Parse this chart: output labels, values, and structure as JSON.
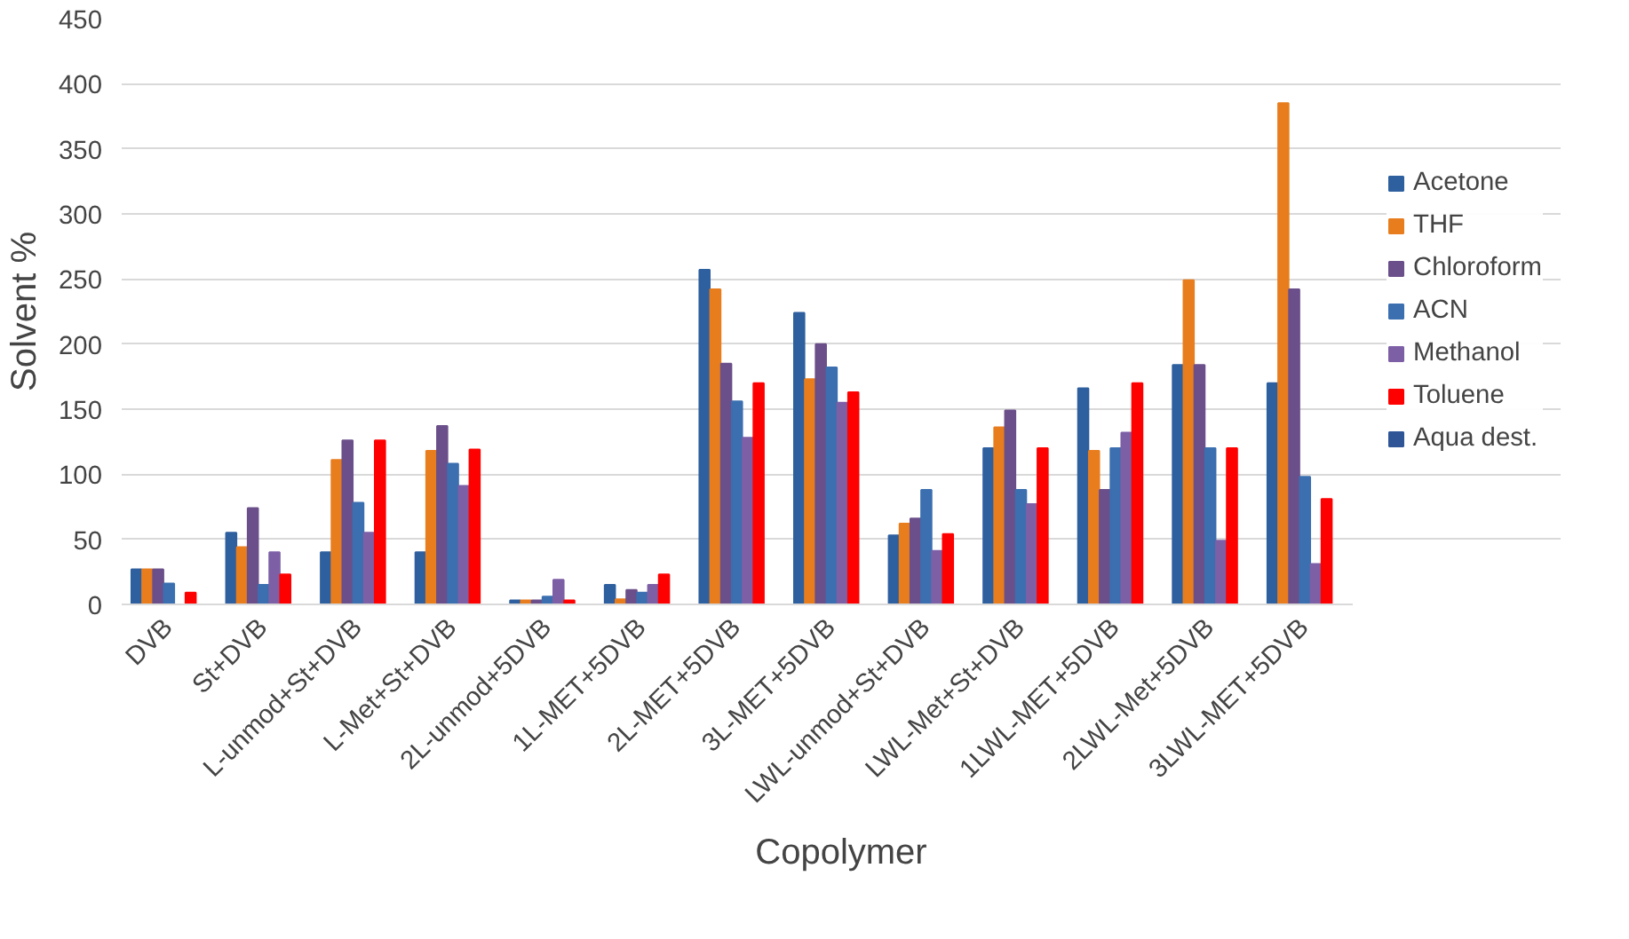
{
  "chart_data": {
    "type": "bar",
    "xlabel": "Copolymer",
    "ylabel": "Solvent %",
    "categories": [
      "DVB",
      "St+DVB",
      "L-unmod+St+DVB",
      "L-Met+St+DVB",
      "2L-unmod+5DVB",
      "1L-MET+5DVB",
      "2L-MET+5DVB",
      "3L-MET+5DVB",
      "LWL-unmod+St+DVB",
      "LWL-Met+St+DVB",
      "1LWL-MET+5DVB",
      "2LWL-Met+5DVB",
      "3LWL-MET+5DVB"
    ],
    "series": [
      {
        "name": "Acetone",
        "color": "#2e5f9e",
        "values": [
          27,
          55,
          40,
          40,
          3,
          15,
          257,
          224,
          53,
          120,
          166,
          184,
          170
        ]
      },
      {
        "name": "THF",
        "color": "#e87d1e",
        "values": [
          27,
          44,
          111,
          118,
          3,
          4,
          242,
          173,
          62,
          136,
          118,
          249,
          385
        ]
      },
      {
        "name": "Chloroform",
        "color": "#6b4f8a",
        "values": [
          27,
          74,
          126,
          137,
          3,
          11,
          185,
          200,
          66,
          149,
          88,
          184,
          242
        ]
      },
      {
        "name": "ACN",
        "color": "#3b6fb0",
        "values": [
          16,
          15,
          78,
          108,
          6,
          9,
          156,
          182,
          88,
          88,
          120,
          120,
          98
        ]
      },
      {
        "name": "Methanol",
        "color": "#7d5fa6",
        "values": [
          0,
          40,
          55,
          91,
          19,
          15,
          128,
          155,
          41,
          77,
          132,
          49,
          31
        ]
      },
      {
        "name": "Toluene",
        "color": "#ff0000",
        "values": [
          9,
          23,
          126,
          119,
          3,
          23,
          170,
          163,
          54,
          120,
          170,
          120,
          81
        ]
      },
      {
        "name": "Aqua dest.",
        "color": "#2f5597",
        "values": [
          0,
          0,
          0,
          0,
          0,
          0,
          0,
          0,
          0,
          0,
          0,
          0,
          0
        ]
      }
    ],
    "ylim": [
      0,
      450
    ],
    "yticks": [
      0,
      50,
      100,
      150,
      200,
      250,
      300,
      350,
      400,
      450
    ],
    "grid": "y",
    "legend": "right"
  }
}
